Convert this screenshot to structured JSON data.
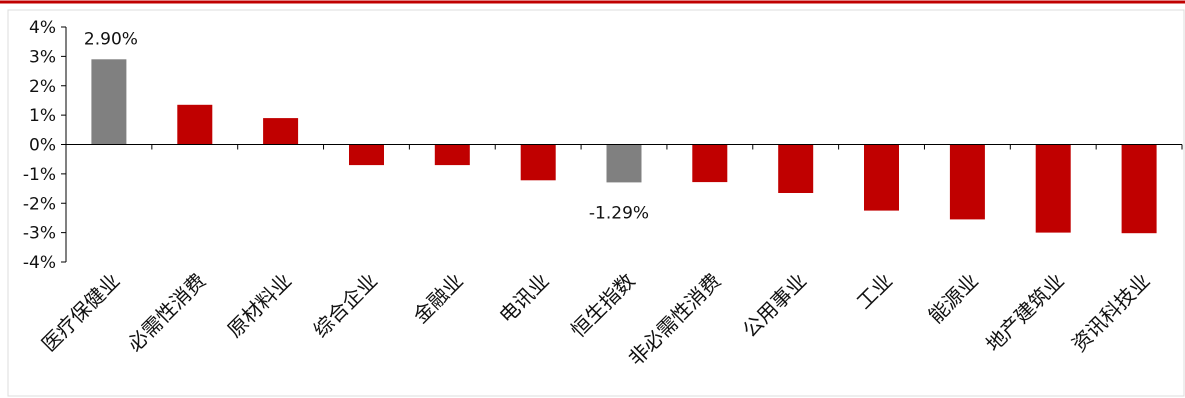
{
  "colors": {
    "top_rule": "#c00000",
    "bar_default": "#c00000",
    "bar_highlight": "#808080",
    "axis": "#000000",
    "frame": "#dcdcdc"
  },
  "chart_data": {
    "type": "bar",
    "title": "",
    "xlabel": "",
    "ylabel": "",
    "categories": [
      "医疗保健业",
      "必需性消费",
      "原材料业",
      "综合企业",
      "金融业",
      "电讯业",
      "恒生指数",
      "非必需性消费",
      "公用事业",
      "工业",
      "能源业",
      "地产建筑业",
      "资讯科技业"
    ],
    "values": [
      2.9,
      1.35,
      0.9,
      -0.7,
      -0.7,
      -1.22,
      -1.29,
      -1.28,
      -1.65,
      -2.25,
      -2.55,
      -3.0,
      -3.02
    ],
    "highlight": [
      "医疗保健业",
      "恒生指数"
    ],
    "data_labels": [
      {
        "category": "医疗保健业",
        "text": "2.90%"
      },
      {
        "category": "恒生指数",
        "text": "-1.29%"
      }
    ],
    "ylim": [
      -4,
      4
    ],
    "yticks": [
      {
        "value": 4,
        "label": "4%"
      },
      {
        "value": 3,
        "label": "3%"
      },
      {
        "value": 2,
        "label": "2%"
      },
      {
        "value": 1,
        "label": "1%"
      },
      {
        "value": 0,
        "label": "0%"
      },
      {
        "value": -1,
        "label": "-1%"
      },
      {
        "value": -2,
        "label": "-2%"
      },
      {
        "value": -3,
        "label": "-3%"
      },
      {
        "value": -4,
        "label": "-4%"
      }
    ],
    "grid": false,
    "legend": "none"
  }
}
